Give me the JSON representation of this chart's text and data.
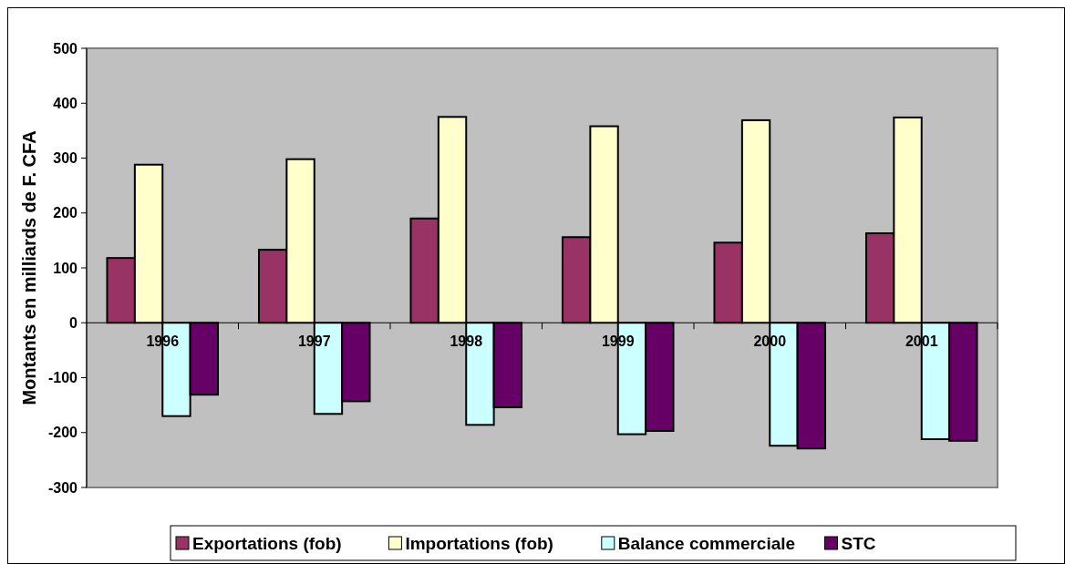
{
  "chart_data": {
    "type": "bar",
    "ylabel": "Montants en milliards de F. CFA",
    "categories": [
      "1996",
      "1997",
      "1998",
      "1999",
      "2000",
      "2001"
    ],
    "series": [
      {
        "name": "Exportations (fob)",
        "color": "#993366",
        "values": [
          118,
          133,
          190,
          156,
          146,
          163
        ]
      },
      {
        "name": "Importations (fob)",
        "color": "#ffffcc",
        "values": [
          288,
          298,
          375,
          358,
          369,
          374
        ]
      },
      {
        "name": "Balance commerciale",
        "color": "#ccffff",
        "values": [
          -170,
          -166,
          -186,
          -203,
          -224,
          -212
        ]
      },
      {
        "name": "STC",
        "color": "#660066",
        "values": [
          -131,
          -143,
          -154,
          -197,
          -229,
          -215
        ]
      }
    ],
    "ylim": [
      -300,
      500
    ],
    "yticks": [
      -300,
      -200,
      -100,
      0,
      100,
      200,
      300,
      400,
      500
    ],
    "grid": false,
    "legend": "bottom"
  }
}
